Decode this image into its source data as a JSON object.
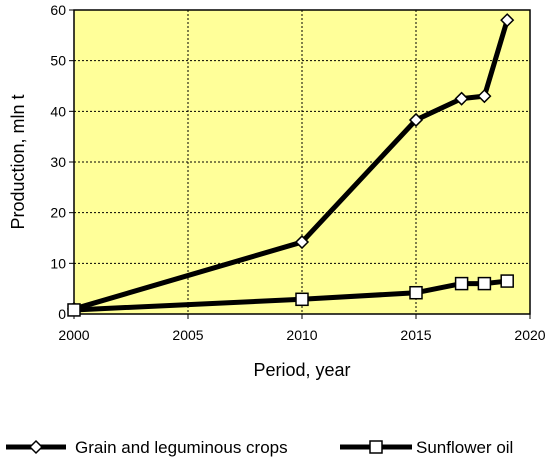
{
  "chart_data": {
    "type": "line",
    "title": "",
    "xlabel": "Period, year",
    "ylabel": "Production, mln t",
    "xlim": [
      2000,
      2020
    ],
    "ylim": [
      0,
      60
    ],
    "x_ticks": [
      2000,
      2005,
      2010,
      2015,
      2020
    ],
    "y_ticks": [
      0,
      10,
      20,
      30,
      40,
      50,
      60
    ],
    "grid": true,
    "plot_background": "#ffff99",
    "legend_position": "bottom",
    "series": [
      {
        "name": "Grain and leguminous crops",
        "marker": "diamond",
        "color": "#000000",
        "points": [
          {
            "x": 2000,
            "y": 1.0
          },
          {
            "x": 2010,
            "y": 14.2
          },
          {
            "x": 2015,
            "y": 38.3
          },
          {
            "x": 2017,
            "y": 42.5
          },
          {
            "x": 2018,
            "y": 43.0
          },
          {
            "x": 2019,
            "y": 58.0
          }
        ]
      },
      {
        "name": "Sunflower oil",
        "marker": "square",
        "color": "#000000",
        "points": [
          {
            "x": 2000,
            "y": 0.8
          },
          {
            "x": 2010,
            "y": 2.9
          },
          {
            "x": 2015,
            "y": 4.2
          },
          {
            "x": 2017,
            "y": 6.0
          },
          {
            "x": 2018,
            "y": 6.0
          },
          {
            "x": 2019,
            "y": 6.5
          }
        ]
      }
    ]
  }
}
